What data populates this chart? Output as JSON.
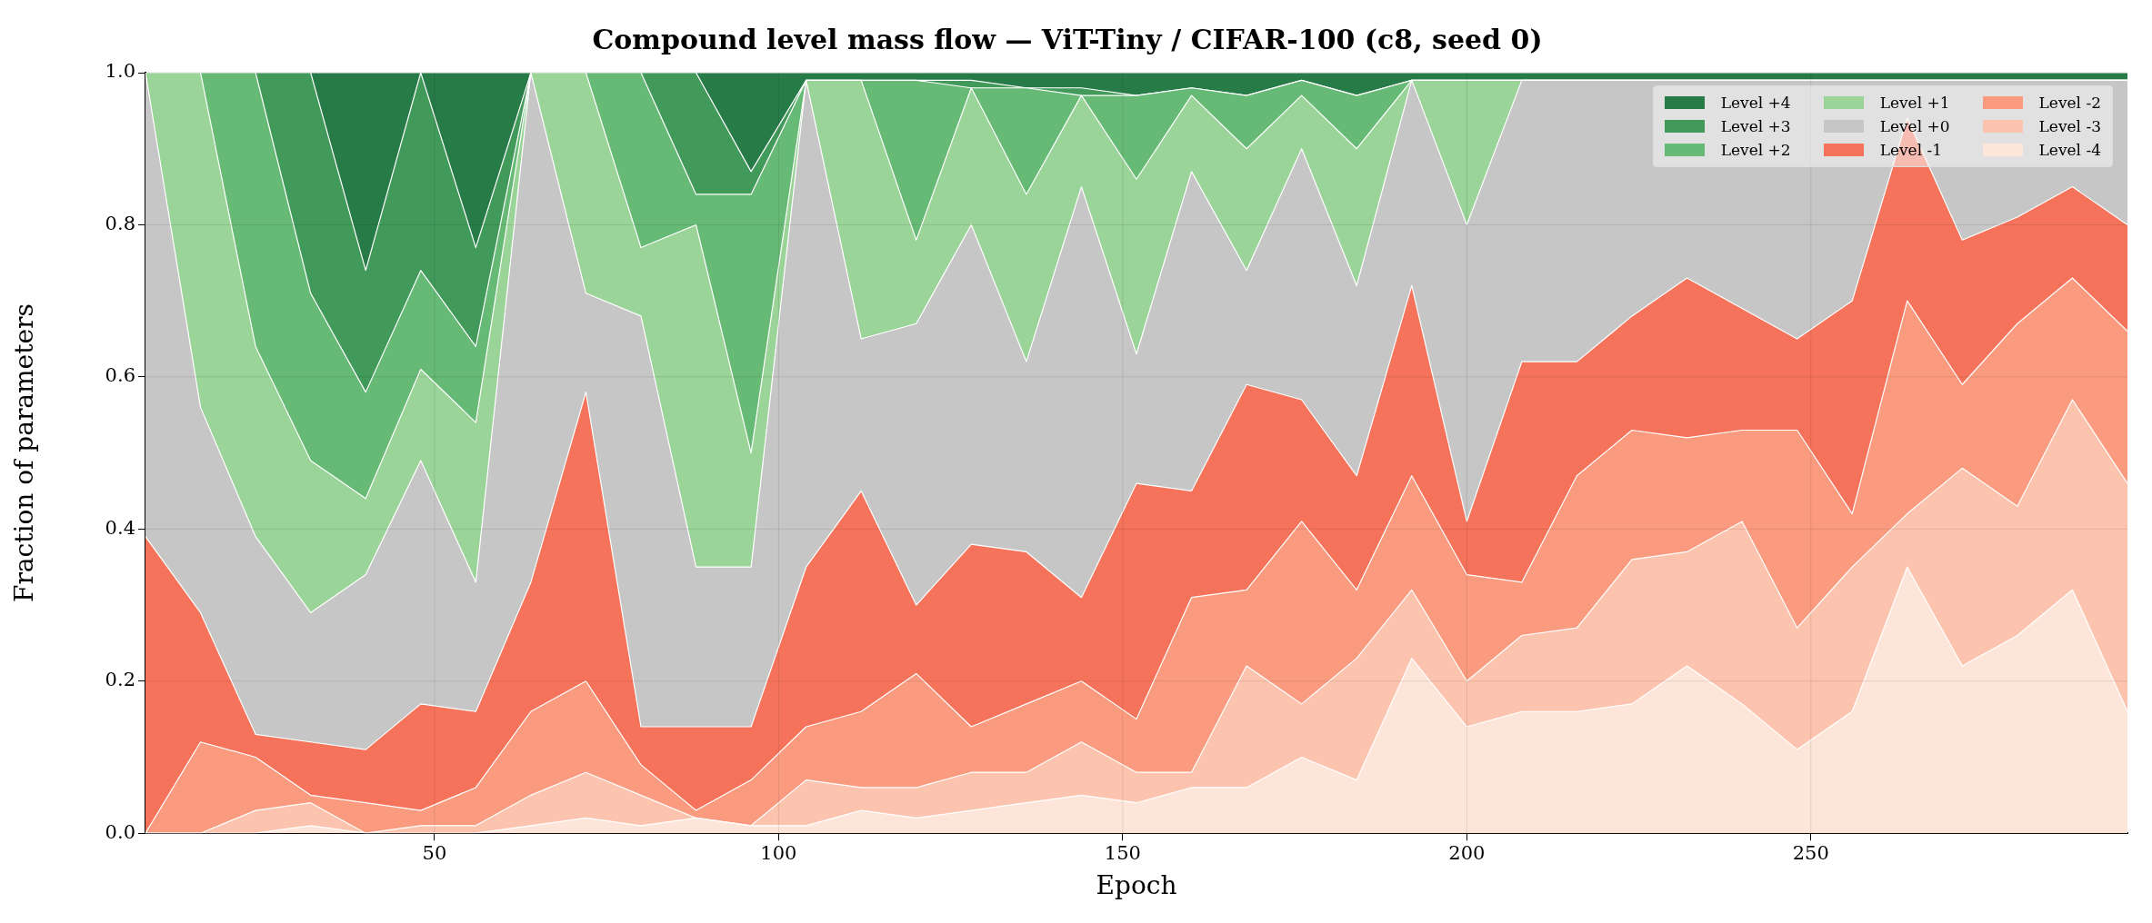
{
  "chart_data": {
    "type": "area",
    "stacked": true,
    "title": "Compound level mass flow — ViT-Tiny / CIFAR-100 (c8, seed 0)",
    "xlabel": "Epoch",
    "ylabel": "Fraction of parameters",
    "x": [
      8,
      16,
      24,
      32,
      40,
      48,
      56,
      64,
      72,
      80,
      88,
      96,
      104,
      112,
      120,
      128,
      136,
      144,
      152,
      160,
      168,
      176,
      184,
      192,
      200,
      208,
      216,
      224,
      232,
      240,
      248,
      256,
      264,
      272,
      280,
      288,
      296
    ],
    "xlim": [
      8,
      296
    ],
    "xticks": [
      50,
      100,
      150,
      200,
      250
    ],
    "ylim": [
      0,
      1
    ],
    "yticks": [
      {
        "value": 0,
        "label": "0.0"
      },
      {
        "value": 0.2,
        "label": "0.2"
      },
      {
        "value": 0.4,
        "label": "0.4"
      },
      {
        "value": 0.6,
        "label": "0.6"
      },
      {
        "value": 0.8,
        "label": "0.8"
      },
      {
        "value": 1,
        "label": "1.0"
      }
    ],
    "grid": true,
    "legend": "top right",
    "series": [
      {
        "name": "Level -4",
        "color": "#fde5d9",
        "values": [
          0,
          0,
          0,
          0.01,
          0,
          0,
          0,
          0.01,
          0.02,
          0.01,
          0.02,
          0.01,
          0.01,
          0.03,
          0.02,
          0.03,
          0.04,
          0.05,
          0.04,
          0.06,
          0.06,
          0.1,
          0.07,
          0.23,
          0.14,
          0.16,
          0.16,
          0.17,
          0.22,
          0.17,
          0.11,
          0.16,
          0.35,
          0.22,
          0.26,
          0.32,
          0.16
        ]
      },
      {
        "name": "Level -3",
        "color": "#fcc4ae",
        "values": [
          0,
          0,
          0.03,
          0.03,
          0,
          0.01,
          0.01,
          0.04,
          0.06,
          0.04,
          0,
          0,
          0.06,
          0.03,
          0.04,
          0.05,
          0.04,
          0.07,
          0.04,
          0.02,
          0.16,
          0.07,
          0.16,
          0.09,
          0.06,
          0.1,
          0.11,
          0.19,
          0.15,
          0.24,
          0.16,
          0.19,
          0.07,
          0.26,
          0.17,
          0.25,
          0.3
        ]
      },
      {
        "name": "Level -2",
        "color": "#fa9b80",
        "values": [
          0,
          0.12,
          0.07,
          0.01,
          0.04,
          0.02,
          0.05,
          0.11,
          0.12,
          0.04,
          0.01,
          0.06,
          0.07,
          0.1,
          0.15,
          0.06,
          0.09,
          0.08,
          0.07,
          0.23,
          0.1,
          0.24,
          0.09,
          0.15,
          0.14,
          0.07,
          0.2,
          0.17,
          0.15,
          0.12,
          0.26,
          0.07,
          0.28,
          0.11,
          0.24,
          0.16,
          0.2
        ]
      },
      {
        "name": "Level -1",
        "color": "#f6735b",
        "values": [
          0.39,
          0.17,
          0.03,
          0.07,
          0.07,
          0.14,
          0.1,
          0.17,
          0.38,
          0.05,
          0.11,
          0.07,
          0.21,
          0.29,
          0.09,
          0.24,
          0.2,
          0.11,
          0.31,
          0.14,
          0.27,
          0.16,
          0.15,
          0.25,
          0.07,
          0.29,
          0.15,
          0.15,
          0.21,
          0.16,
          0.12,
          0.28,
          0.24,
          0.19,
          0.14,
          0.12,
          0.14
        ]
      },
      {
        "name": "Level +0",
        "color": "#c6c6c6",
        "values": [
          0.61,
          0.27,
          0.26,
          0.17,
          0.23,
          0.32,
          0.17,
          0.67,
          0.13,
          0.54,
          0.21,
          0.21,
          0.64,
          0.2,
          0.37,
          0.42,
          0.25,
          0.54,
          0.17,
          0.42,
          0.15,
          0.33,
          0.25,
          0.27,
          0.39,
          0.37,
          0.37,
          0.31,
          0.26,
          0.3,
          0.34,
          0.29,
          0.05,
          0.21,
          0.18,
          0.14,
          0.19
        ]
      },
      {
        "name": "Level +1",
        "color": "#9ad498",
        "values": [
          0,
          0.44,
          0.25,
          0.2,
          0.1,
          0.12,
          0.21,
          0,
          0.29,
          0.09,
          0.45,
          0.15,
          0,
          0.34,
          0.11,
          0.18,
          0.22,
          0.12,
          0.23,
          0.1,
          0.16,
          0.07,
          0.18,
          0,
          0.19,
          0,
          0,
          0,
          0,
          0,
          0,
          0,
          0,
          0,
          0,
          0,
          0
        ]
      },
      {
        "name": "Level +2",
        "color": "#67ba76",
        "values": [
          0,
          0,
          0.36,
          0.22,
          0.14,
          0.13,
          0.1,
          0,
          0,
          0.23,
          0.04,
          0.34,
          0,
          0,
          0.21,
          0,
          0.14,
          0,
          0.11,
          0.01,
          0.07,
          0.02,
          0.07,
          0,
          0,
          0,
          0,
          0,
          0,
          0,
          0,
          0,
          0,
          0,
          0,
          0,
          0
        ]
      },
      {
        "name": "Level +3",
        "color": "#41995a",
        "values": [
          0,
          0,
          0,
          0.29,
          0.16,
          0.26,
          0.13,
          0,
          0,
          0,
          0.16,
          0.03,
          0,
          0,
          0,
          0.01,
          0,
          0.01,
          0,
          0,
          0,
          0,
          0,
          0,
          0,
          0,
          0,
          0,
          0,
          0,
          0,
          0,
          0,
          0,
          0,
          0,
          0
        ]
      },
      {
        "name": "Level +4",
        "color": "#277b47",
        "values": [
          0,
          0,
          0,
          0,
          0.26,
          0,
          0.23,
          0,
          0,
          0,
          0,
          0.13,
          0.01,
          0.01,
          0.01,
          0.01,
          0.02,
          0.02,
          0.03,
          0.02,
          0.03,
          0.01,
          0.03,
          0.01,
          0.01,
          0.01,
          0.01,
          0.01,
          0.01,
          0.01,
          0.01,
          0.01,
          0.01,
          0.01,
          0.01,
          0.01,
          0.01
        ]
      }
    ]
  }
}
